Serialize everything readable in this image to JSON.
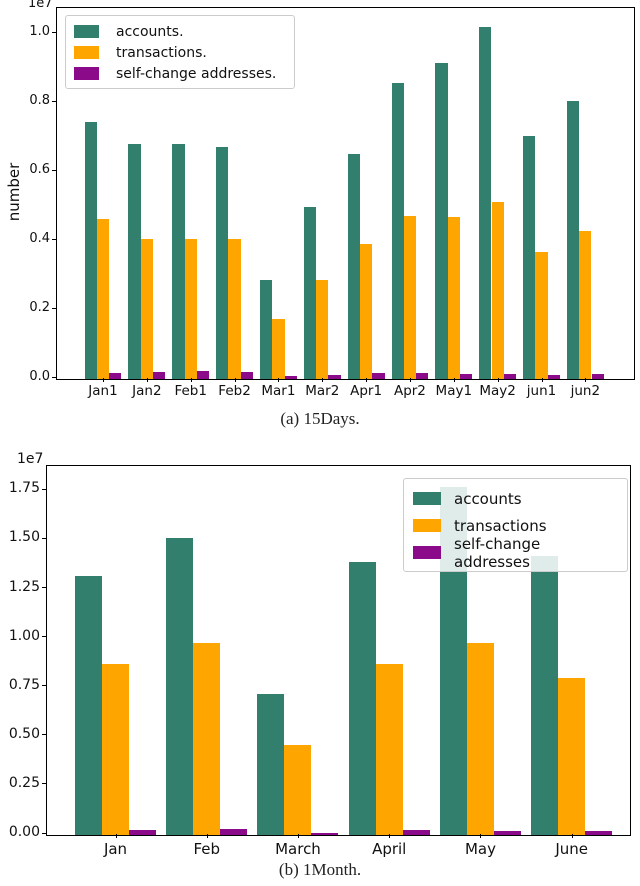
{
  "chart_data": [
    {
      "type": "bar",
      "caption": "(a) 15Days.",
      "ylabel": "number",
      "y_offset_label": "1e7",
      "unit_note": "bar values are in units of 1e7 (multiplier shown above axis)",
      "categories": [
        "Jan1",
        "Jan2",
        "Feb1",
        "Feb2",
        "Mar1",
        "Mar2",
        "Apr1",
        "Apr2",
        "May1",
        "May2",
        "jun1",
        "jun2"
      ],
      "series": [
        {
          "name": "accounts.",
          "color": "#337f6e",
          "values": [
            0.745,
            0.68,
            0.68,
            0.673,
            0.288,
            0.499,
            0.651,
            0.859,
            0.917,
            1.02,
            0.703,
            0.806
          ]
        },
        {
          "name": "transactions.",
          "color": "#ffa500",
          "values": [
            0.463,
            0.407,
            0.407,
            0.407,
            0.175,
            0.287,
            0.392,
            0.473,
            0.47,
            0.512,
            0.369,
            0.428
          ]
        },
        {
          "name": "self-change addresses.",
          "color": "#8a0a8a",
          "values": [
            0.016,
            0.019,
            0.022,
            0.019,
            0.008,
            0.012,
            0.017,
            0.017,
            0.015,
            0.015,
            0.012,
            0.015
          ]
        }
      ],
      "ylim": [
        0,
        1.07
      ],
      "yticks": [
        0.0,
        0.2,
        0.4,
        0.6,
        0.8,
        1.0
      ],
      "ytick_labels": [
        "0.0",
        "0.2",
        "0.4",
        "0.6",
        "0.8",
        "1.0"
      ],
      "legend_position": "upper left",
      "grid": false
    },
    {
      "type": "bar",
      "caption": "(b) 1Month.",
      "ylabel": "",
      "y_offset_label": "1e7",
      "unit_note": "bar values are in units of 1e7 (multiplier shown above axis)",
      "categories": [
        "Jan",
        "Feb",
        "March",
        "April",
        "May",
        "June"
      ],
      "series": [
        {
          "name": "accounts",
          "color": "#337f6e",
          "values": [
            1.32,
            1.51,
            0.72,
            1.39,
            1.77,
            1.42
          ]
        },
        {
          "name": "transactions",
          "color": "#ffa500",
          "values": [
            0.87,
            0.98,
            0.46,
            0.87,
            0.98,
            0.8
          ]
        },
        {
          "name": "self-change addresses",
          "color": "#8a0a8a",
          "values": [
            0.024,
            0.03,
            0.011,
            0.024,
            0.019,
            0.019
          ]
        }
      ],
      "ylim": [
        0,
        1.87
      ],
      "yticks": [
        0.0,
        0.25,
        0.5,
        0.75,
        1.0,
        1.25,
        1.5,
        1.75
      ],
      "ytick_labels": [
        "0.00",
        "0.25",
        "0.50",
        "0.75",
        "1.00",
        "1.25",
        "1.50",
        "1.75"
      ],
      "legend_position": "upper right",
      "grid": false
    }
  ]
}
